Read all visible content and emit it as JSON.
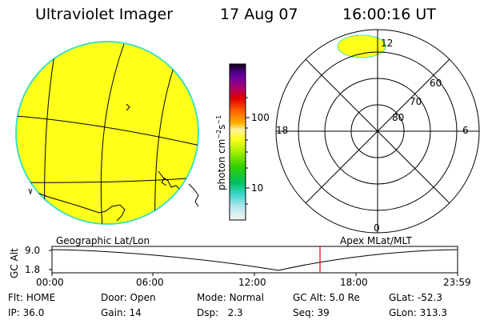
{
  "header": {
    "instrument": "Ultraviolet Imager",
    "date": "17 Aug 07",
    "time": "16:00:16 UT"
  },
  "colorbar": {
    "unit_label": "photon cm",
    "unit_sup1": "−2",
    "unit_mid": "s",
    "unit_sup2": "−1",
    "ticks": [
      "100",
      "10"
    ]
  },
  "polar": {
    "lat_labels": [
      "60",
      "70",
      "80"
    ],
    "mlt_labels": {
      "top": "12",
      "left": "18",
      "right": "6",
      "bottom": "0"
    }
  },
  "panels": {
    "left_title": "Geographic Lat/Lon",
    "right_title": "Apex MLat/MLT"
  },
  "altitude_plot": {
    "ylabel": "GC Alt",
    "yticks": [
      "9.0",
      "1.8"
    ],
    "xticks": [
      "00:00",
      "06:00",
      "12:00",
      "18:00",
      "23:59"
    ],
    "marker_time": "16:00"
  },
  "status": {
    "flt_label": "Flt:",
    "flt_value": "HOME",
    "ip_label": "IP:",
    "ip_value": "36.0",
    "door_label": "Door:",
    "door_value": "Open",
    "gain_label": "Gain:",
    "gain_value": "14",
    "mode_label": "Mode:",
    "mode_value": "Normal",
    "dsp_label": "Dsp:",
    "dsp_value": "2.3",
    "gcalt_label": "GC Alt:",
    "gcalt_value": "5.0 Re",
    "seq_label": "Seq:",
    "seq_value": "39",
    "glat_label": "GLat:",
    "glat_value": "-52.3",
    "glon_label": "GLon:",
    "glon_value": "313.3"
  },
  "colors": {
    "image_fill": "#ffff1a",
    "image_edge": "#40e0c0",
    "marker": "#e00000"
  }
}
